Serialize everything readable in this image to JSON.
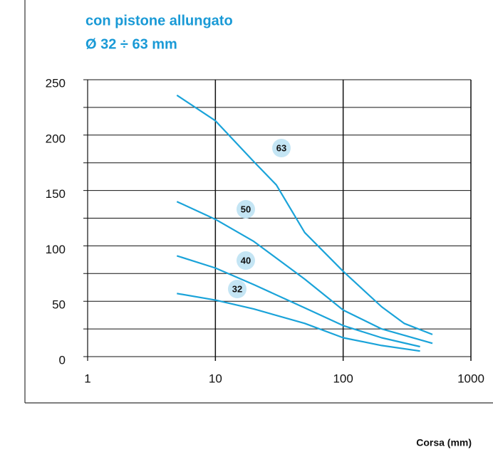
{
  "chart_data": {
    "type": "line",
    "title": "con pistone allungato",
    "subtitle": "Ø 32 ÷ 63 mm",
    "x_label": "Corsa  (mm)",
    "log_x": true,
    "grid": true,
    "xlim": [
      1,
      1000
    ],
    "xticks": [
      1,
      10,
      100,
      1000
    ],
    "ylim": [
      0,
      250
    ],
    "yticks": [
      0,
      50,
      100,
      150,
      200,
      250
    ],
    "yminor_ticks": [
      25,
      75,
      125,
      175,
      225
    ],
    "series": [
      {
        "name": "63",
        "color": "#1aa3d9",
        "x": [
          5,
          10,
          20,
          30,
          50,
          100,
          200,
          300,
          500
        ],
        "values": [
          236,
          213,
          176,
          155,
          112,
          77,
          45,
          30,
          20
        ]
      },
      {
        "name": "50",
        "color": "#1aa3d9",
        "x": [
          5,
          10,
          20,
          50,
          100,
          200,
          500
        ],
        "values": [
          140,
          124,
          104,
          70,
          42,
          25,
          12
        ]
      },
      {
        "name": "40",
        "color": "#1aa3d9",
        "x": [
          5,
          10,
          20,
          50,
          100,
          200,
          400
        ],
        "values": [
          91,
          80,
          65,
          44,
          28,
          17,
          9
        ]
      },
      {
        "name": "32",
        "color": "#1aa3d9",
        "x": [
          5,
          10,
          20,
          50,
          100,
          200,
          400
        ],
        "values": [
          57,
          51,
          43,
          30,
          17,
          10,
          5
        ]
      }
    ]
  }
}
